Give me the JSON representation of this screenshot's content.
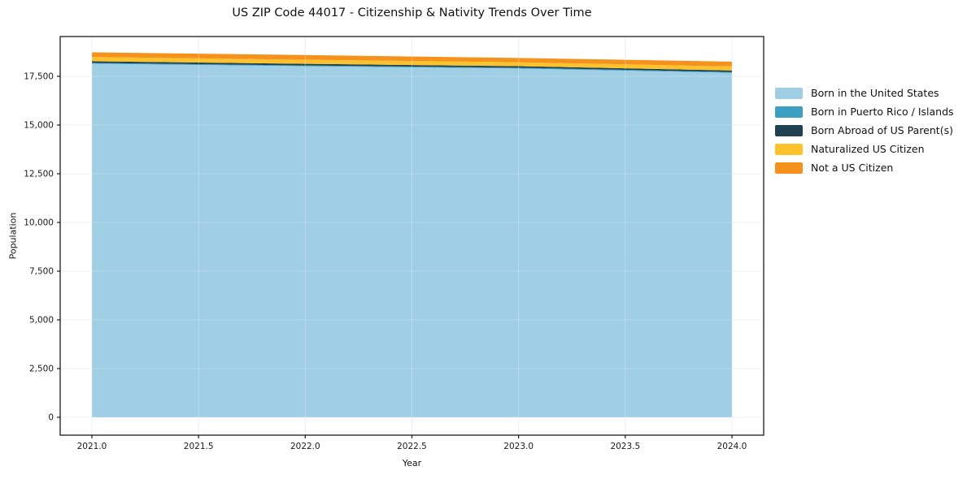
{
  "chart": {
    "title": "US ZIP Code 44017 - Citizenship & Nativity Trends Over Time",
    "xlabel": "Year",
    "ylabel": "Population"
  },
  "chart_data": {
    "type": "area",
    "stacked": true,
    "title": "US ZIP Code 44017 - Citizenship & Nativity Trends Over Time",
    "xlabel": "Year",
    "ylabel": "Population",
    "x": [
      2021,
      2022,
      2023,
      2024
    ],
    "series": [
      {
        "name": "Born in the United States",
        "color": "#9FCEE5",
        "values": [
          18150,
          18020,
          17900,
          17680
        ]
      },
      {
        "name": "Born in Puerto Rico / Islands",
        "color": "#3BA0C2",
        "values": [
          40,
          40,
          40,
          40
        ]
      },
      {
        "name": "Born Abroad of US Parent(s)",
        "color": "#1F4152",
        "values": [
          80,
          80,
          80,
          80
        ]
      },
      {
        "name": "Naturalized US Citizen",
        "color": "#FBC22D",
        "values": [
          220,
          210,
          200,
          205
        ]
      },
      {
        "name": "Not a US Citizen",
        "color": "#F5921E",
        "values": [
          245,
          240,
          220,
          250
        ]
      }
    ],
    "x_ticks": {
      "values": [
        2021.0,
        2021.5,
        2022.0,
        2022.5,
        2023.0,
        2023.5,
        2024.0
      ],
      "labels": [
        "2021.0",
        "2021.5",
        "2022.0",
        "2022.5",
        "2023.0",
        "2023.5",
        "2024.0"
      ]
    },
    "y_ticks": {
      "values": [
        0,
        2500,
        5000,
        7500,
        10000,
        12500,
        15000,
        17500
      ],
      "labels": [
        "0",
        "2,500",
        "5,000",
        "7,500",
        "10,000",
        "12,500",
        "15,000",
        "17,500"
      ]
    },
    "xlim": [
      2020.85,
      2024.15
    ],
    "ylim": [
      -900,
      19600
    ],
    "grid": true,
    "legend_position": "right-outside",
    "colors": {
      "grid_under": "#e9e9e9",
      "grid_over": "rgba(255,255,255,0.28)",
      "spine": "#1a1a1a",
      "tick_text": "#1a1a1a"
    }
  }
}
